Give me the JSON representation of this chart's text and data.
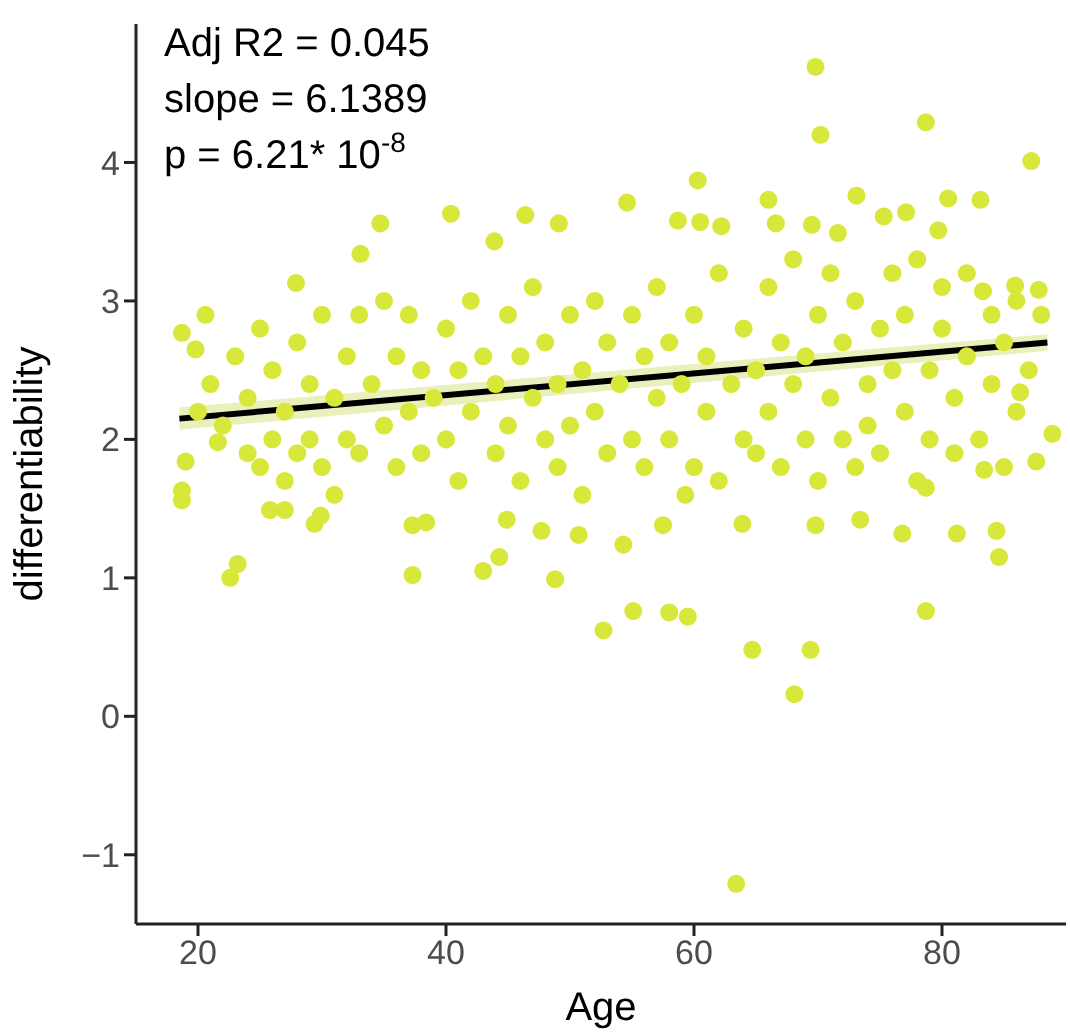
{
  "chart_data": {
    "type": "scatter",
    "xlabel": "Age",
    "ylabel": "differentiability",
    "annotations": [
      "Adj R2 = 0.045",
      "slope = 6.1389",
      "p = 6.21* 10$^{-8}$"
    ],
    "xlim": [
      15,
      90
    ],
    "ylim": [
      -1.5,
      5
    ],
    "xticks": [
      20,
      40,
      60,
      80
    ],
    "yticks": [
      {
        "value": -1,
        "label": "−1"
      },
      0,
      1,
      2,
      3,
      4
    ],
    "grid": false,
    "series": [
      {
        "color": "#d8e83a",
        "marker": "circle",
        "x": [
          63.4,
          69.8,
          70.2,
          78.7,
          87.2,
          68.1,
          64.7,
          69.4,
          78.7,
          52.7,
          55.1,
          58,
          59.5,
          22.6,
          23.2,
          37.3,
          43,
          44.3,
          48.8,
          40.4,
          34.7,
          46.4,
          49.1,
          33.1,
          43.9,
          27.9,
          20.6,
          18.7,
          19.8,
          18.7,
          18.7,
          19.0,
          21.6,
          25.8,
          27.0,
          29.4,
          29.9,
          37.3,
          38.4,
          47.7,
          44.9,
          50.7,
          54.6,
          60.3,
          66.0,
          73.1,
          80.5,
          83.1,
          58.7,
          60.5,
          62.2,
          66.6,
          69.5,
          75.3,
          77.1,
          79.7,
          71.6,
          54.3,
          57.5,
          59.3,
          63.9,
          69.8,
          73.4,
          76.8,
          81.2,
          84.4,
          84.6,
          78.7,
          83.4,
          87.6,
          88.9,
          87.8,
          86.3,
          85.9,
          83.3,
          20,
          21,
          22,
          23,
          24,
          24,
          25,
          25,
          26,
          26,
          27,
          27,
          28,
          28,
          29,
          29,
          30,
          30,
          31,
          31,
          32,
          32,
          33,
          33,
          34,
          35,
          35,
          36,
          36,
          37,
          37,
          38,
          38,
          39,
          40,
          40,
          41,
          41,
          42,
          42,
          43,
          44,
          44,
          45,
          45,
          46,
          46,
          47,
          47,
          48,
          48,
          49,
          49,
          50,
          50,
          51,
          51,
          52,
          52,
          53,
          53,
          54,
          55,
          55,
          56,
          56,
          57,
          57,
          58,
          58,
          59,
          60,
          60,
          61,
          61,
          62,
          62,
          63,
          64,
          64,
          65,
          65,
          66,
          66,
          67,
          67,
          68,
          68,
          69,
          69,
          70,
          70,
          71,
          71,
          72,
          72,
          73,
          73,
          74,
          74,
          75,
          75,
          76,
          76,
          77,
          77,
          78,
          78,
          79,
          79,
          80,
          80,
          81,
          81,
          82,
          82,
          83,
          84,
          84,
          85,
          85,
          86,
          86,
          87,
          88
        ],
        "values": [
          -1.21,
          4.69,
          4.2,
          4.29,
          4.01,
          0.16,
          0.48,
          0.48,
          0.76,
          0.62,
          0.76,
          0.75,
          0.72,
          1.0,
          1.1,
          1.02,
          1.05,
          1.15,
          0.99,
          3.63,
          3.56,
          3.62,
          3.56,
          3.34,
          3.43,
          3.13,
          2.9,
          2.77,
          2.65,
          1.56,
          1.63,
          1.84,
          1.98,
          1.49,
          1.49,
          1.39,
          1.45,
          1.38,
          1.4,
          1.34,
          1.42,
          1.31,
          3.71,
          3.87,
          3.73,
          3.76,
          3.74,
          3.73,
          3.58,
          3.57,
          3.54,
          3.56,
          3.55,
          3.61,
          3.64,
          3.51,
          3.49,
          1.24,
          1.38,
          1.6,
          1.39,
          1.38,
          1.42,
          1.32,
          1.32,
          1.34,
          1.15,
          1.65,
          1.78,
          1.84,
          2.04,
          3.08,
          2.34,
          3.11,
          3.07,
          2.2,
          2.4,
          2.1,
          2.6,
          1.9,
          2.3,
          2.8,
          1.8,
          2.0,
          2.5,
          1.7,
          2.2,
          1.9,
          2.7,
          2.4,
          2.0,
          2.9,
          1.8,
          2.3,
          1.6,
          2.6,
          2.0,
          1.9,
          2.9,
          2.4,
          2.1,
          3.0,
          1.8,
          2.6,
          2.9,
          2.2,
          1.9,
          2.5,
          2.3,
          2.0,
          2.8,
          2.5,
          1.7,
          2.2,
          3.0,
          2.6,
          1.9,
          2.4,
          2.9,
          2.1,
          1.7,
          2.6,
          2.3,
          3.1,
          2.0,
          2.7,
          1.8,
          2.4,
          2.9,
          2.1,
          2.5,
          1.6,
          2.2,
          3.0,
          2.7,
          1.9,
          2.4,
          2.0,
          2.9,
          1.8,
          2.6,
          2.3,
          3.1,
          2.0,
          2.7,
          2.4,
          1.8,
          2.9,
          2.2,
          2.6,
          1.7,
          3.2,
          2.4,
          2.0,
          2.8,
          1.9,
          2.5,
          3.1,
          2.2,
          1.8,
          2.7,
          2.4,
          3.3,
          2.0,
          2.6,
          1.7,
          2.9,
          2.3,
          3.2,
          2.0,
          2.7,
          1.8,
          3.0,
          2.4,
          2.1,
          2.8,
          1.9,
          2.5,
          3.2,
          2.2,
          2.9,
          1.7,
          3.3,
          2.5,
          2.0,
          2.8,
          3.1,
          2.3,
          1.9,
          2.6,
          3.2,
          2.0,
          2.9,
          2.4,
          1.8,
          2.7,
          2.2,
          3.0,
          2.5,
          2.9
        ]
      },
      {
        "type": "line",
        "color": "#000000",
        "marker": "none",
        "x": [
          18.5,
          88.5
        ],
        "values": [
          2.15,
          2.7
        ],
        "lower": [
          2.07,
          2.64
        ],
        "upper": [
          2.23,
          2.76
        ]
      }
    ]
  }
}
